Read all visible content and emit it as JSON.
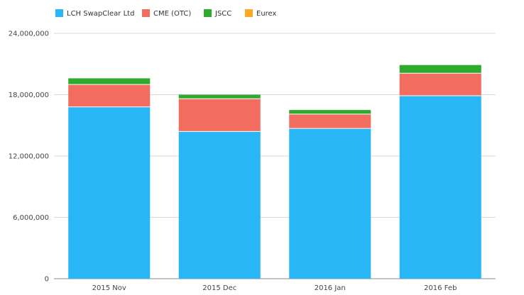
{
  "chart_data": {
    "type": "bar",
    "stacked": true,
    "categories": [
      "2015 Nov",
      "2015 Dec",
      "2016 Jan",
      "2016 Feb"
    ],
    "series": [
      {
        "name": "LCH SwapClear Ltd",
        "color": "#29b6f6",
        "values": [
          16800000,
          14400000,
          14700000,
          17900000
        ]
      },
      {
        "name": "CME (OTC)",
        "color": "#f26d5f",
        "values": [
          2200000,
          3200000,
          1400000,
          2200000
        ]
      },
      {
        "name": "JSCC",
        "color": "#2eaa2e",
        "values": [
          600000,
          400000,
          400000,
          800000
        ]
      },
      {
        "name": "Eurex",
        "color": "#ffa726",
        "values": [
          0,
          0,
          0,
          0
        ]
      }
    ],
    "ylim": [
      0,
      24000000
    ],
    "yticks": [
      0,
      6000000,
      12000000,
      18000000,
      24000000
    ],
    "ytick_labels": [
      "0",
      "6,000,000",
      "12,000,000",
      "18,000,000",
      "24,000,000"
    ],
    "grid": true,
    "legend_position": "top-left"
  }
}
